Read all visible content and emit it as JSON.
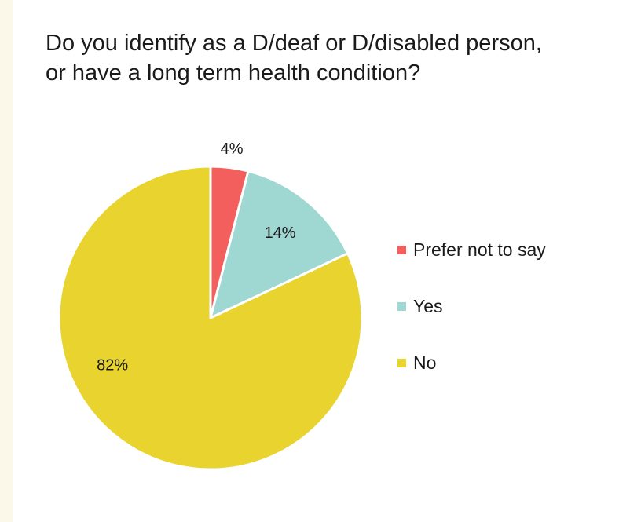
{
  "chart_data": {
    "type": "pie",
    "title": "Do you identify as a D/deaf or D/disabled person, or have a long term health condition?",
    "slices": [
      {
        "label": "Prefer not to say",
        "value": 4,
        "display": "4%",
        "color": "#f25f5c"
      },
      {
        "label": "Yes",
        "value": 14,
        "display": "14%",
        "color": "#9fd8d2"
      },
      {
        "label": "No",
        "value": 82,
        "display": "82%",
        "color": "#e8d32f"
      }
    ],
    "legend_position": "right"
  }
}
